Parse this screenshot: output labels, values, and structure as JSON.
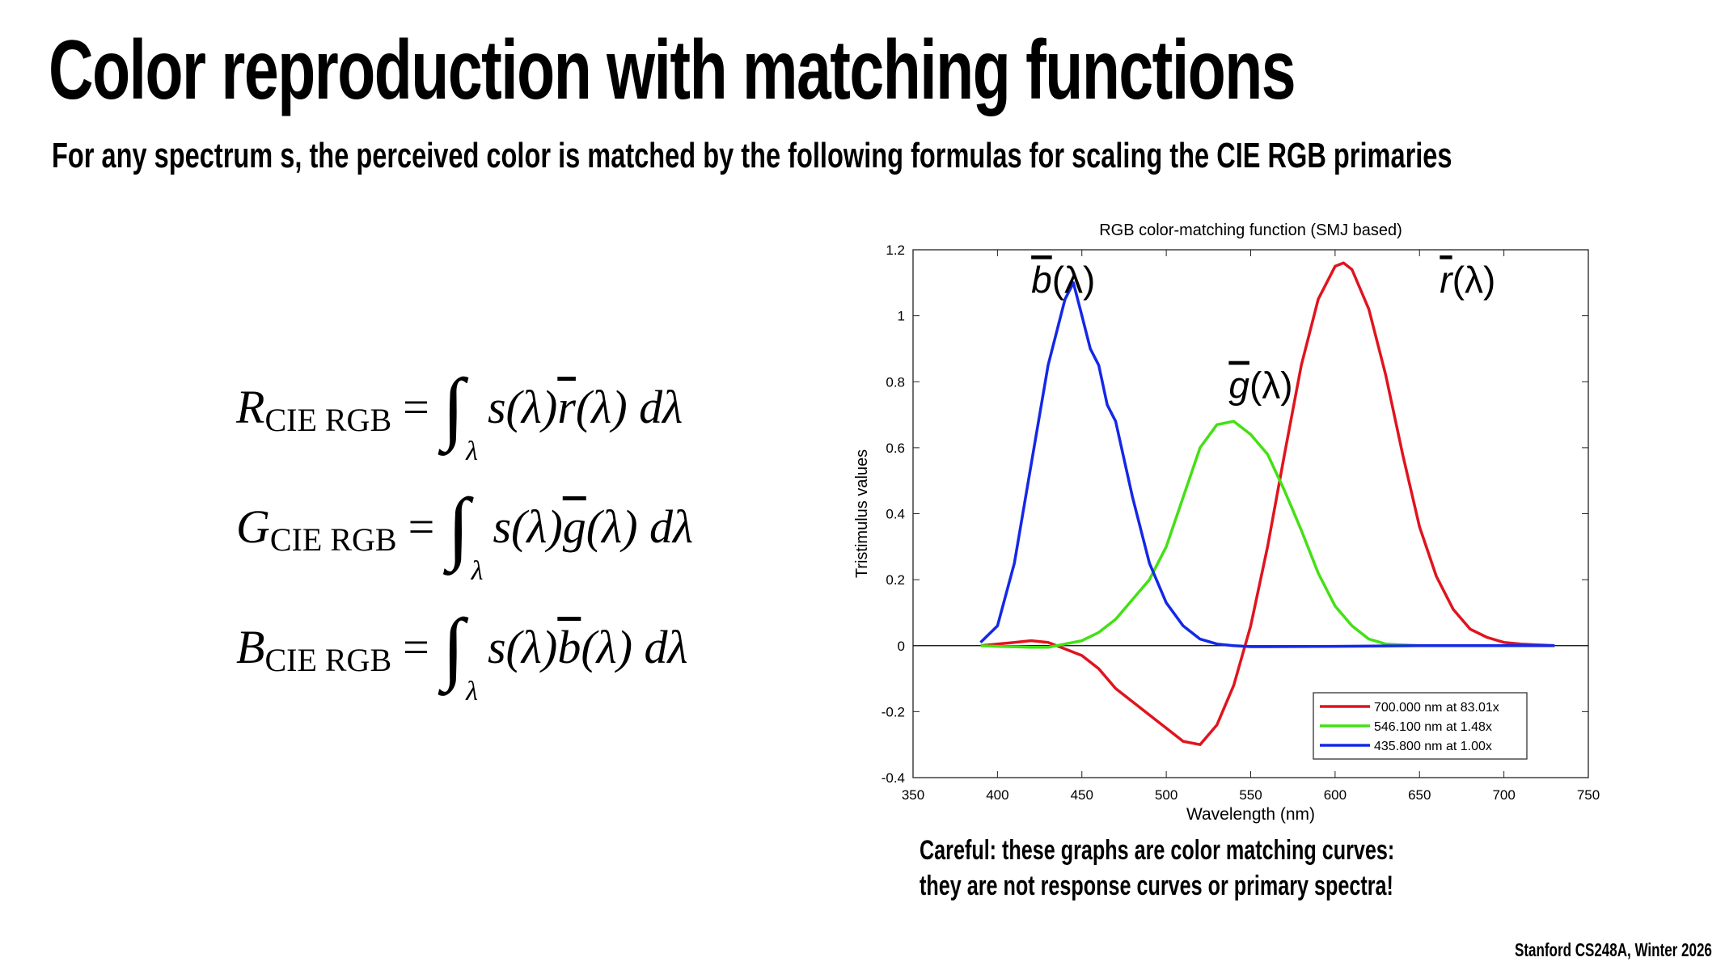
{
  "slide": {
    "title": "Color reproduction with matching functions",
    "subtitle": "For any spectrum s, the perceived color is matched by the following formulas for scaling the CIE RGB primaries",
    "caution_line1": "Careful: these graphs are color matching curves:",
    "caution_line2": "they are not response curves or primary spectra!",
    "footer": "Stanford CS248A, Winter 2026"
  },
  "equations": [
    {
      "lhs": "R",
      "sub": "CIE RGB",
      "eq": "=",
      "integrand": "s(λ)",
      "fn": "r",
      "arg": "(λ) dλ",
      "var": "λ"
    },
    {
      "lhs": "G",
      "sub": "CIE RGB",
      "eq": "=",
      "integrand": "s(λ)",
      "fn": "g",
      "arg": "(λ) dλ",
      "var": "λ"
    },
    {
      "lhs": "B",
      "sub": "CIE RGB",
      "eq": "=",
      "integrand": "s(λ)",
      "fn": "b",
      "arg": "(λ) dλ",
      "var": "λ"
    }
  ],
  "chart_data": {
    "type": "line",
    "title": "RGB color-matching function (SMJ based)",
    "xlabel": "Wavelength (nm)",
    "ylabel": "Tristimulus values",
    "xlim": [
      350,
      750
    ],
    "ylim": [
      -0.4,
      1.2
    ],
    "xticks": [
      "350",
      "400",
      "450",
      "500",
      "550",
      "600",
      "650",
      "700",
      "750"
    ],
    "yticks": [
      "-0.4",
      "-0.2",
      "0",
      "0.2",
      "0.4",
      "0.6",
      "0.8",
      "1",
      "1.2"
    ],
    "grid": false,
    "legend_position": "bottom-right",
    "annotations": [
      {
        "fn": "b",
        "text": "(λ)",
        "at": [
          420,
          1.07
        ]
      },
      {
        "fn": "g",
        "text": "(λ)",
        "at": [
          537,
          0.75
        ]
      },
      {
        "fn": "r",
        "text": "(λ)",
        "at": [
          662,
          1.07
        ]
      }
    ],
    "series": [
      {
        "name": "700.000 nm at 83.01x",
        "color": "#e0141e",
        "x": [
          390,
          400,
          410,
          420,
          430,
          440,
          450,
          460,
          470,
          480,
          490,
          500,
          510,
          520,
          530,
          540,
          550,
          560,
          570,
          580,
          590,
          600,
          605,
          610,
          620,
          630,
          640,
          650,
          660,
          670,
          680,
          690,
          700,
          710,
          730
        ],
        "y": [
          0,
          0.005,
          0.01,
          0.015,
          0.01,
          -0.01,
          -0.03,
          -0.07,
          -0.13,
          -0.17,
          -0.21,
          -0.25,
          -0.29,
          -0.3,
          -0.24,
          -0.12,
          0.06,
          0.3,
          0.58,
          0.85,
          1.05,
          1.15,
          1.16,
          1.14,
          1.02,
          0.82,
          0.58,
          0.36,
          0.21,
          0.11,
          0.05,
          0.025,
          0.01,
          0.005,
          0
        ]
      },
      {
        "name": "546.100 nm at  1.48x",
        "color": "#44e014",
        "x": [
          390,
          400,
          420,
          430,
          440,
          450,
          460,
          470,
          480,
          490,
          500,
          510,
          520,
          530,
          540,
          550,
          560,
          570,
          580,
          590,
          600,
          610,
          620,
          630,
          650,
          730
        ],
        "y": [
          0,
          -0.002,
          -0.005,
          -0.005,
          0.005,
          0.015,
          0.04,
          0.08,
          0.14,
          0.2,
          0.3,
          0.45,
          0.6,
          0.67,
          0.68,
          0.64,
          0.58,
          0.47,
          0.35,
          0.22,
          0.12,
          0.06,
          0.02,
          0.005,
          0,
          0
        ]
      },
      {
        "name": "435.800 nm at  1.00x",
        "color": "#1428e6",
        "x": [
          390,
          400,
          410,
          420,
          430,
          440,
          445,
          450,
          455,
          460,
          465,
          470,
          480,
          490,
          500,
          510,
          520,
          530,
          540,
          550,
          560,
          600,
          650,
          730
        ],
        "y": [
          0.01,
          0.06,
          0.25,
          0.55,
          0.85,
          1.05,
          1.1,
          1.0,
          0.9,
          0.85,
          0.73,
          0.68,
          0.45,
          0.25,
          0.13,
          0.06,
          0.02,
          0.005,
          0,
          -0.003,
          -0.003,
          -0.002,
          0,
          0
        ]
      }
    ]
  }
}
